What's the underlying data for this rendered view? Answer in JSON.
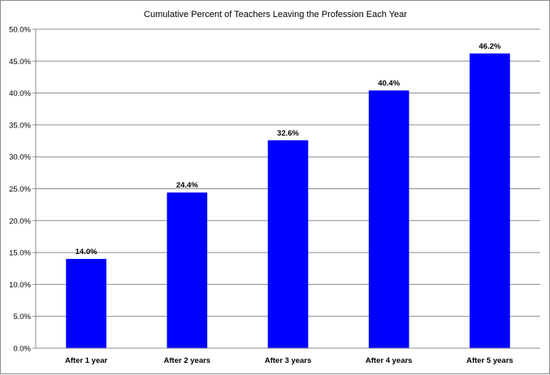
{
  "chart_data": {
    "type": "bar",
    "title": "Cumulative Percent of Teachers Leaving the Profession Each Year",
    "xlabel": "",
    "ylabel": "",
    "categories": [
      "After 1 year",
      "After 2 years",
      "After 3 years",
      "After 4 years",
      "After 5 years"
    ],
    "values": [
      14.0,
      24.4,
      32.6,
      40.4,
      46.2
    ],
    "value_labels": [
      "14.0%",
      "24.4%",
      "32.6%",
      "40.4%",
      "46.2%"
    ],
    "ylim": [
      0,
      50
    ],
    "yticks": [
      0,
      5,
      10,
      15,
      20,
      25,
      30,
      35,
      40,
      45,
      50
    ],
    "ytick_labels": [
      "0.0%",
      "5.0%",
      "10.0%",
      "15.0%",
      "20.0%",
      "25.0%",
      "30.0%",
      "35.0%",
      "40.0%",
      "45.0%",
      "50.0%"
    ],
    "grid": true,
    "legend": "none",
    "bar_color": "#0000ff",
    "grid_color": "#8c8c8c"
  }
}
